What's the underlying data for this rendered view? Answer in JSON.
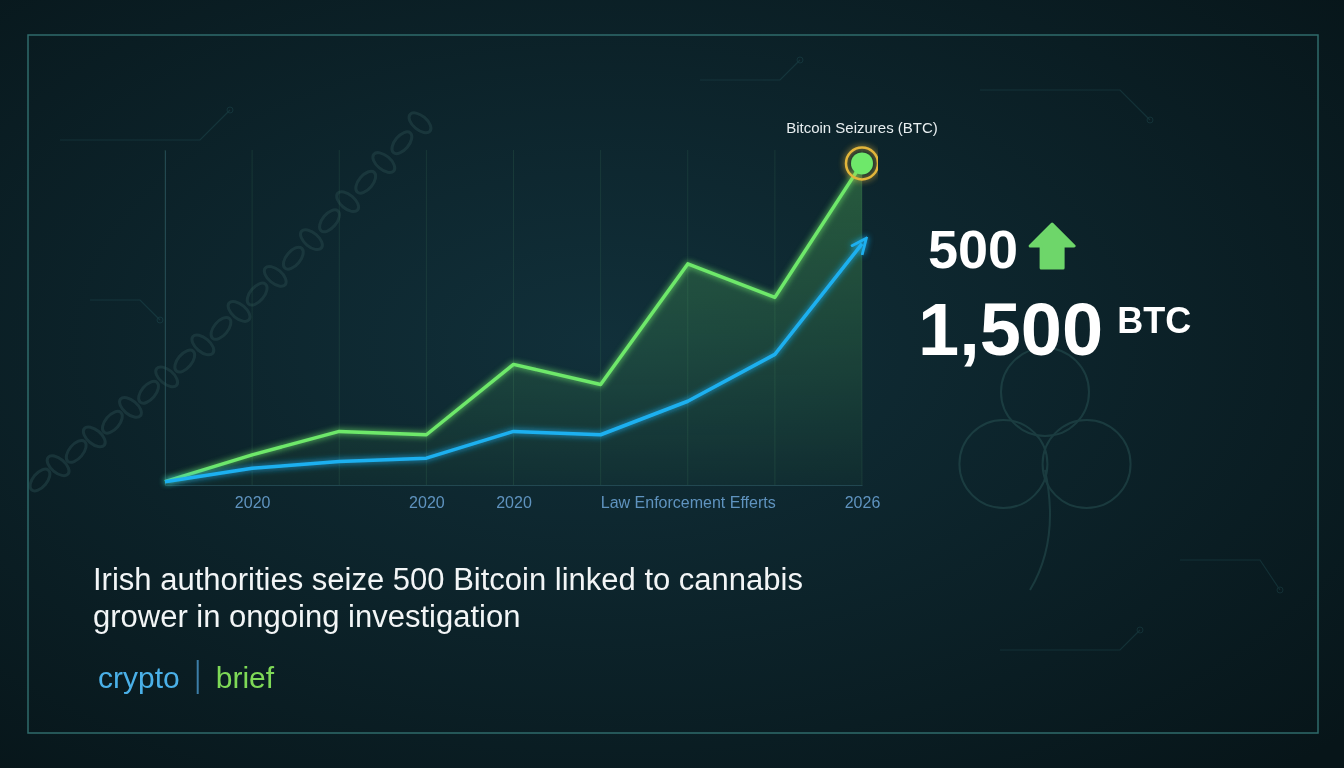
{
  "chart_data": {
    "type": "line",
    "title": "Bitcoin Seizures (BTC)",
    "categories": [
      null,
      "2020",
      null,
      "2020",
      "2020",
      null,
      "Law Enforcement Efferts",
      null,
      "2026"
    ],
    "series": [
      {
        "color": "#6ee86a",
        "values": [
          1,
          9,
          16,
          15,
          36,
          30,
          66,
          56,
          96
        ]
      },
      {
        "color": "#1fb0f0",
        "marker": "arrow",
        "values": [
          1,
          5,
          7,
          8,
          16,
          15,
          25,
          39,
          72
        ]
      }
    ],
    "ylim": [
      0,
      100
    ],
    "tick_labels": "x",
    "grid": true,
    "annotations": [
      "500",
      "1,500",
      "BTC"
    ]
  },
  "headline": "Irish authorities seize 500 Bitcoin linked to cannabis grower in ongoing investigation",
  "brand": [
    "crypto",
    "brief"
  ]
}
